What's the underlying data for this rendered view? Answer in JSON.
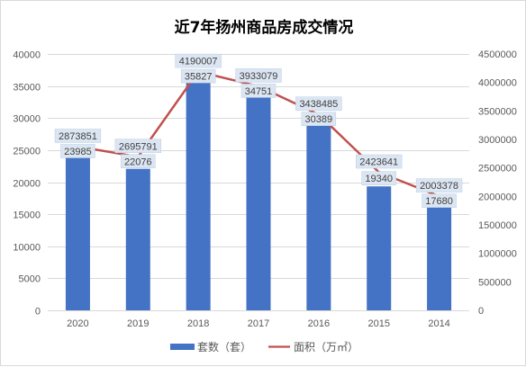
{
  "chart_data": {
    "type": "bar",
    "title": "近7年扬州商品房成交情况",
    "categories": [
      "2020",
      "2019",
      "2018",
      "2017",
      "2016",
      "2015",
      "2014"
    ],
    "series": [
      {
        "name": "套数（套）",
        "type": "bar",
        "axis": "left",
        "color": "#4472c4",
        "values": [
          23985,
          22076,
          35827,
          34751,
          30389,
          19340,
          17680
        ],
        "labels": [
          "23985",
          "22076",
          "35827",
          "34751",
          "30389",
          "19340",
          "17680"
        ]
      },
      {
        "name": "面积（万㎡）",
        "type": "line",
        "axis": "right",
        "color": "#c0504d",
        "values": [
          2873851,
          2695791,
          4190007,
          3933079,
          3438485,
          2423641,
          2003378
        ],
        "labels": [
          "2873851",
          "2695791",
          "4190007",
          "3933079",
          "3438485",
          "2423641",
          "2003378"
        ]
      }
    ],
    "y_left": {
      "min": 0,
      "max": 40000,
      "ticks": [
        0,
        5000,
        10000,
        15000,
        20000,
        25000,
        30000,
        35000,
        40000
      ],
      "tick_labels": [
        "0",
        "5000",
        "10000",
        "15000",
        "20000",
        "25000",
        "30000",
        "35000",
        "40000"
      ]
    },
    "y_right": {
      "min": 0,
      "max": 4500000,
      "ticks": [
        0,
        500000,
        1000000,
        1500000,
        2000000,
        2500000,
        3000000,
        3500000,
        4000000,
        4500000
      ],
      "tick_labels": [
        "0",
        "500000",
        "1000000",
        "1500000",
        "2000000",
        "2500000",
        "3000000",
        "3500000",
        "4000000",
        "4500000"
      ]
    },
    "grid": true,
    "legend_position": "bottom",
    "data_label_background": "#dce6f2"
  }
}
